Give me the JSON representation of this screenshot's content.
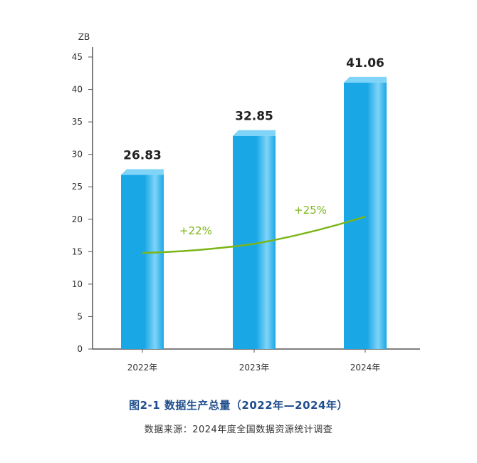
{
  "chart_data": {
    "type": "bar",
    "unit_label": "ZB",
    "categories": [
      "2022年",
      "2023年",
      "2024年"
    ],
    "values": [
      26.83,
      32.85,
      41.06
    ],
    "value_labels": [
      "26.83",
      "32.85",
      "41.06"
    ],
    "ylim": [
      0,
      45
    ],
    "yticks": [
      0,
      5,
      10,
      15,
      20,
      25,
      30,
      35,
      40,
      45
    ],
    "grid": false,
    "trend_line": {
      "values": [
        14.8,
        16.2,
        20.4
      ],
      "annotations": [
        "+22%",
        "+25%"
      ],
      "color": "#7cb518"
    },
    "bar_color": "#1aa7e6",
    "bar_highlight_color": "#7fd4f7",
    "axis_color": "#555555"
  },
  "caption": {
    "title": "图2-1 数据生产总量（2022年—2024年）",
    "source": "数据来源：2024年度全国数据资源统计调查"
  }
}
